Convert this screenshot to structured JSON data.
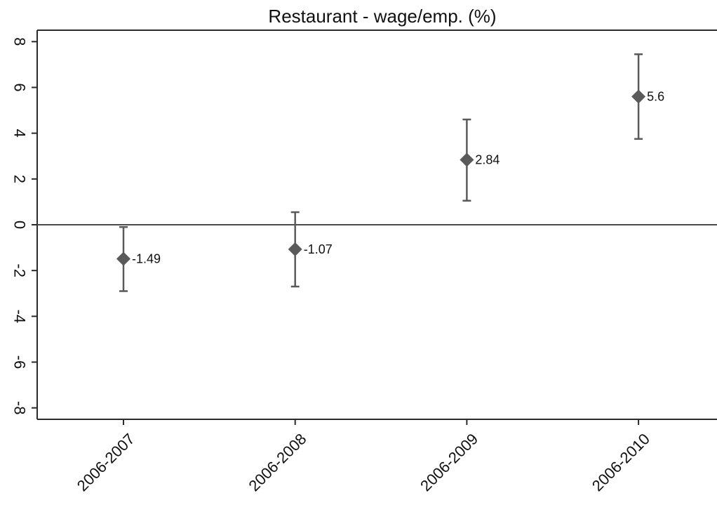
{
  "chart_data": {
    "type": "scatter",
    "title": "Restaurant - wage/emp. (%)",
    "xlabel": "",
    "ylabel": "",
    "categories": [
      "2006-2007",
      "2006-2008",
      "2006-2009",
      "2006-2010"
    ],
    "series": [
      {
        "values": [
          -1.49,
          -1.07,
          2.84,
          5.6
        ],
        "ci_low": [
          -2.9,
          -2.7,
          1.05,
          3.75
        ],
        "ci_high": [
          -0.1,
          0.55,
          4.6,
          7.45
        ],
        "data_labels": [
          "-1.49",
          "-1.07",
          "2.84",
          "5.6"
        ]
      }
    ],
    "ylim": [
      -8.5,
      8.5
    ],
    "yticks": [
      8,
      6,
      4,
      2,
      0,
      -2,
      -4,
      -6,
      -8
    ],
    "reference_line_y": 0,
    "grid": false,
    "legend": "none",
    "colors": {
      "marker": "#5a5a5a",
      "errorbar": "#5a5a5a",
      "axis": "#2b2b2b",
      "reference_line": "#4a4a4a"
    }
  }
}
